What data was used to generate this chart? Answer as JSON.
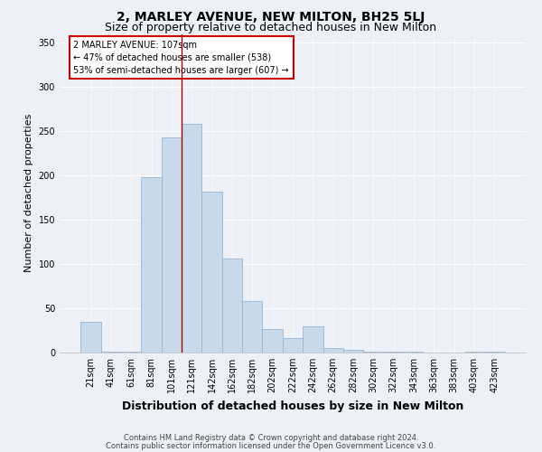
{
  "title": "2, MARLEY AVENUE, NEW MILTON, BH25 5LJ",
  "subtitle": "Size of property relative to detached houses in New Milton",
  "xlabel": "Distribution of detached houses by size in New Milton",
  "ylabel": "Number of detached properties",
  "categories": [
    "21sqm",
    "41sqm",
    "61sqm",
    "81sqm",
    "101sqm",
    "121sqm",
    "142sqm",
    "162sqm",
    "182sqm",
    "202sqm",
    "222sqm",
    "242sqm",
    "262sqm",
    "282sqm",
    "302sqm",
    "322sqm",
    "343sqm",
    "363sqm",
    "383sqm",
    "403sqm",
    "423sqm"
  ],
  "values": [
    35,
    1,
    1,
    198,
    243,
    258,
    182,
    106,
    58,
    27,
    16,
    30,
    5,
    3,
    1,
    1,
    1,
    0,
    0,
    1,
    1
  ],
  "bar_color": "#c8d9ec",
  "bar_edge_color": "#9ab5d0",
  "highlight_line_color": "#aa0000",
  "ylim": [
    0,
    360
  ],
  "yticks": [
    0,
    50,
    100,
    150,
    200,
    250,
    300,
    350
  ],
  "annotation_text": "2 MARLEY AVENUE: 107sqm\n← 47% of detached houses are smaller (538)\n53% of semi-detached houses are larger (607) →",
  "annotation_box_color": "#ffffff",
  "annotation_box_edge": "#cc0000",
  "footer_line1": "Contains HM Land Registry data © Crown copyright and database right 2024.",
  "footer_line2": "Contains public sector information licensed under the Open Government Licence v3.0.",
  "bg_color": "#edf1f7",
  "plot_bg_color": "#edf1f7",
  "title_fontsize": 10,
  "subtitle_fontsize": 9,
  "xlabel_fontsize": 9,
  "ylabel_fontsize": 8,
  "tick_fontsize": 7,
  "footer_fontsize": 6,
  "annot_fontsize": 7
}
